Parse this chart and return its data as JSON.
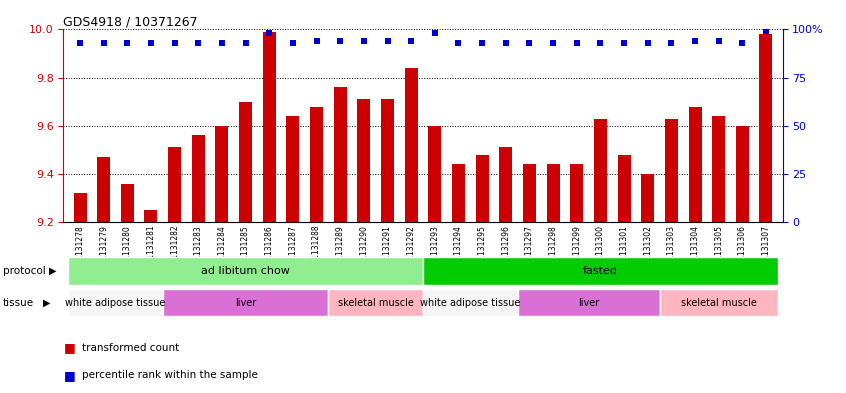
{
  "title": "GDS4918 / 10371267",
  "samples": [
    "GSM1131278",
    "GSM1131279",
    "GSM1131280",
    "GSM1131281",
    "GSM1131282",
    "GSM1131283",
    "GSM1131284",
    "GSM1131285",
    "GSM1131286",
    "GSM1131287",
    "GSM1131288",
    "GSM1131289",
    "GSM1131290",
    "GSM1131291",
    "GSM1131292",
    "GSM1131293",
    "GSM1131294",
    "GSM1131295",
    "GSM1131296",
    "GSM1131297",
    "GSM1131298",
    "GSM1131299",
    "GSM1131300",
    "GSM1131301",
    "GSM1131302",
    "GSM1131303",
    "GSM1131304",
    "GSM1131305",
    "GSM1131306",
    "GSM1131307"
  ],
  "bar_values": [
    9.32,
    9.47,
    9.36,
    9.25,
    9.51,
    9.56,
    9.6,
    9.7,
    9.99,
    9.64,
    9.68,
    9.76,
    9.71,
    9.71,
    9.84,
    9.6,
    9.44,
    9.48,
    9.51,
    9.44,
    9.44,
    9.44,
    9.63,
    9.48,
    9.4,
    9.63,
    9.68,
    9.64,
    9.6,
    9.98
  ],
  "percentile_values": [
    93,
    93,
    93,
    93,
    93,
    93,
    93,
    93,
    98,
    93,
    94,
    94,
    94,
    94,
    94,
    98,
    93,
    93,
    93,
    93,
    93,
    93,
    93,
    93,
    93,
    93,
    94,
    94,
    93,
    99
  ],
  "bar_color": "#cc0000",
  "dot_color": "#0000cc",
  "ymin": 9.2,
  "ymax": 10.0,
  "y2min": 0,
  "y2max": 100,
  "yticks": [
    9.2,
    9.4,
    9.6,
    9.8,
    10.0
  ],
  "y2ticks": [
    0,
    25,
    50,
    75,
    100
  ],
  "protocol_labels": [
    {
      "text": "ad libitum chow",
      "start": 0,
      "end": 14,
      "color": "#90ee90"
    },
    {
      "text": "fasted",
      "start": 15,
      "end": 29,
      "color": "#00cc00"
    }
  ],
  "tissue_labels": [
    {
      "text": "white adipose tissue",
      "start": 0,
      "end": 3,
      "color": "#f5f5f5"
    },
    {
      "text": "liver",
      "start": 4,
      "end": 10,
      "color": "#da70d6"
    },
    {
      "text": "skeletal muscle",
      "start": 11,
      "end": 14,
      "color": "#ffb6c1"
    },
    {
      "text": "white adipose tissue",
      "start": 15,
      "end": 18,
      "color": "#f5f5f5"
    },
    {
      "text": "liver",
      "start": 19,
      "end": 24,
      "color": "#da70d6"
    },
    {
      "text": "skeletal muscle",
      "start": 25,
      "end": 29,
      "color": "#ffb6c1"
    }
  ],
  "bar_color_legend": "#cc0000",
  "dot_color_legend": "#0000cc",
  "xlabel_color": "#cc0000",
  "y2label_color": "#0000cc",
  "bg_color": "#ffffff",
  "bar_width": 0.55
}
